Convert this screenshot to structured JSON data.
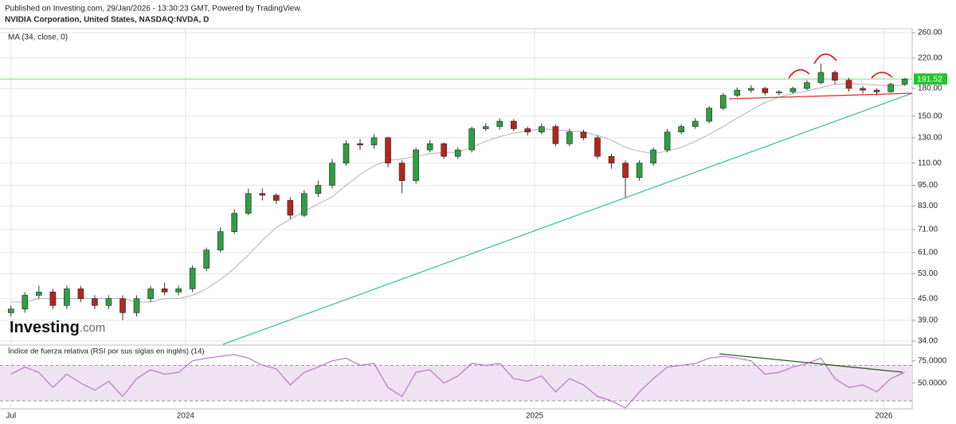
{
  "header": {
    "published": "Published on Investing.com, 29/Jan/2026 - 13:30:23 GMT, Powered by TradingView.",
    "symbol": "NVIDIA Corporation, United States, NASDAQ:NVDA, D"
  },
  "logo": [
    "Investing",
    ".com"
  ],
  "chart_data": [
    {
      "type": "candlestick",
      "log_scale": true,
      "up_color": "#2f9e44",
      "down_color": "#b3261e",
      "x": [
        2023.5,
        2023.54,
        2023.58,
        2023.62,
        2023.66,
        2023.7,
        2023.74,
        2023.78,
        2023.82,
        2023.86,
        2023.9,
        2023.94,
        2023.98,
        2024.02,
        2024.06,
        2024.1,
        2024.14,
        2024.18,
        2024.22,
        2024.26,
        2024.3,
        2024.34,
        2024.38,
        2024.42,
        2024.46,
        2024.5,
        2024.54,
        2024.58,
        2024.62,
        2024.66,
        2024.7,
        2024.74,
        2024.78,
        2024.82,
        2024.86,
        2024.9,
        2024.94,
        2024.98,
        2025.02,
        2025.06,
        2025.1,
        2025.14,
        2025.18,
        2025.22,
        2025.26,
        2025.3,
        2025.34,
        2025.38,
        2025.42,
        2025.46,
        2025.5,
        2025.54,
        2025.58,
        2025.62,
        2025.66,
        2025.7,
        2025.74,
        2025.78,
        2025.82,
        2025.86,
        2025.9,
        2025.94,
        2025.98,
        2026.02,
        2026.06
      ],
      "open": [
        41,
        42,
        46,
        47,
        43,
        48,
        45,
        43,
        45,
        41,
        45,
        48,
        47,
        48,
        55,
        62,
        70,
        79,
        90,
        89,
        86,
        78,
        90,
        95,
        110,
        125,
        124,
        130,
        110,
        98,
        120,
        125,
        115,
        120,
        138,
        140,
        145,
        138,
        135,
        140,
        125,
        135,
        130,
        115,
        110,
        100,
        110,
        120,
        135,
        140,
        145,
        158,
        172,
        178,
        180,
        175,
        176,
        180,
        187,
        200,
        190,
        180,
        178,
        176,
        185
      ],
      "high": [
        43,
        47,
        49,
        48,
        49,
        49,
        46,
        46,
        46,
        46,
        49,
        50,
        49,
        56,
        63,
        72,
        81,
        93,
        93,
        90,
        88,
        92,
        98,
        113,
        128,
        129,
        133,
        131,
        112,
        122,
        128,
        126,
        122,
        140,
        143,
        148,
        147,
        140,
        143,
        142,
        138,
        137,
        132,
        117,
        112,
        112,
        122,
        138,
        142,
        148,
        160,
        175,
        181,
        184,
        182,
        178,
        182,
        190,
        212,
        203,
        193,
        183,
        180,
        187,
        193
      ],
      "low": [
        40,
        41,
        45,
        42,
        42,
        44,
        42,
        42,
        39,
        40,
        44,
        46,
        46,
        47,
        54,
        61,
        69,
        78,
        86,
        84,
        76,
        77,
        88,
        93,
        108,
        120,
        121,
        107,
        90,
        96,
        118,
        113,
        113,
        118,
        136,
        137,
        136,
        132,
        133,
        123,
        123,
        128,
        113,
        106,
        87,
        98,
        108,
        118,
        133,
        138,
        143,
        156,
        170,
        175,
        172,
        172,
        174,
        178,
        185,
        185,
        176,
        174,
        172,
        175,
        183
      ],
      "close": [
        42,
        46,
        47,
        43,
        48,
        45,
        43,
        45,
        41,
        45,
        48,
        47,
        48,
        55,
        62,
        70,
        79,
        90,
        89,
        86,
        78,
        90,
        95,
        110,
        125,
        124,
        130,
        110,
        98,
        120,
        125,
        115,
        120,
        138,
        140,
        145,
        138,
        135,
        140,
        125,
        135,
        130,
        115,
        110,
        100,
        110,
        120,
        135,
        140,
        145,
        158,
        172,
        178,
        180,
        175,
        176,
        180,
        187,
        200,
        190,
        180,
        178,
        176,
        185,
        191.52
      ],
      "ma": {
        "name": "MA (34, close, 0)",
        "color": "#b0b0b0",
        "values": [
          44,
          44,
          45,
          45,
          45,
          45,
          45,
          45,
          45,
          44,
          44,
          45,
          45,
          46,
          48,
          51,
          55,
          60,
          66,
          72,
          76,
          80,
          84,
          88,
          95,
          102,
          108,
          112,
          113,
          115,
          117,
          118,
          118,
          122,
          127,
          131,
          134,
          136,
          138,
          137,
          136,
          135,
          132,
          128,
          122,
          119,
          117,
          119,
          122,
          127,
          133,
          140,
          148,
          156,
          164,
          170,
          174,
          177,
          181,
          185,
          186,
          185,
          184,
          183,
          184
        ]
      },
      "last_color": "#22c42c",
      "xlim": [
        2023.48,
        2026.07
      ],
      "ylim": [
        34,
        260
      ],
      "yticks": [
        {
          "value": 260,
          "label": "260.00"
        },
        {
          "value": 220,
          "label": "220.00"
        },
        {
          "value": 180,
          "label": "180.00"
        },
        {
          "value": 150,
          "label": "150.00"
        },
        {
          "value": 130,
          "label": "130.00"
        },
        {
          "value": 110,
          "label": "110.00"
        },
        {
          "value": 95,
          "label": "95.00"
        },
        {
          "value": 83,
          "label": "83.00"
        },
        {
          "value": 71,
          "label": "71.00"
        },
        {
          "value": 61,
          "label": "61.00"
        },
        {
          "value": 53,
          "label": "53.00"
        },
        {
          "value": 45,
          "label": "45.00"
        },
        {
          "value": 39,
          "label": "39.00"
        },
        {
          "value": 34,
          "label": "34.00"
        }
      ],
      "grid": true
    },
    {
      "type": "line",
      "x": [
        2023.5,
        2023.54,
        2023.58,
        2023.62,
        2023.66,
        2023.7,
        2023.74,
        2023.78,
        2023.82,
        2023.86,
        2023.9,
        2023.94,
        2023.98,
        2024.02,
        2024.06,
        2024.1,
        2024.14,
        2024.18,
        2024.22,
        2024.26,
        2024.3,
        2024.34,
        2024.38,
        2024.42,
        2024.46,
        2024.5,
        2024.54,
        2024.58,
        2024.62,
        2024.66,
        2024.7,
        2024.74,
        2024.78,
        2024.82,
        2024.86,
        2024.9,
        2024.94,
        2024.98,
        2025.02,
        2025.06,
        2025.1,
        2025.14,
        2025.18,
        2025.22,
        2025.26,
        2025.3,
        2025.34,
        2025.38,
        2025.42,
        2025.46,
        2025.5,
        2025.54,
        2025.58,
        2025.62,
        2025.66,
        2025.7,
        2025.74,
        2025.78,
        2025.82,
        2025.86,
        2025.9,
        2025.94,
        2025.98,
        2026.02,
        2026.06
      ],
      "series": [
        {
          "name": "Índice de fuerza relativa (RSI por sus siglas en inglés) (14)",
          "color": "#b45cc4",
          "values": [
            60,
            68,
            62,
            45,
            60,
            50,
            42,
            52,
            35,
            55,
            65,
            60,
            62,
            75,
            78,
            80,
            82,
            78,
            70,
            66,
            48,
            62,
            68,
            75,
            78,
            70,
            72,
            45,
            35,
            62,
            65,
            50,
            58,
            72,
            70,
            72,
            55,
            52,
            58,
            40,
            55,
            48,
            35,
            30,
            22,
            40,
            55,
            68,
            70,
            72,
            78,
            80,
            78,
            75,
            60,
            62,
            68,
            72,
            78,
            55,
            45,
            48,
            40,
            55,
            62
          ]
        }
      ],
      "band": [
        30,
        70
      ],
      "band_color": "#efe2f2",
      "xlim": [
        2023.48,
        2026.07
      ],
      "ylim": [
        21,
        90
      ],
      "yticks": [
        {
          "value": 75,
          "label": "75.0000"
        },
        {
          "value": 50,
          "label": "50.0000"
        }
      ],
      "xticks": [
        {
          "value": 2023.5,
          "label": "Jul"
        },
        2024,
        2025,
        2026
      ],
      "grid": true
    }
  ]
}
